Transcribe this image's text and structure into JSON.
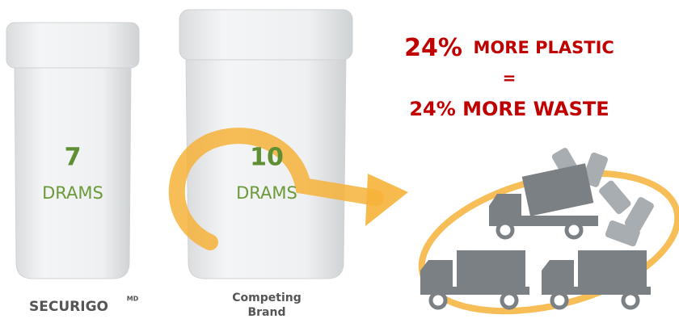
{
  "containers": [
    {
      "amount": 7,
      "unit": "DRAMS",
      "label": "SECURIGO",
      "label_mark": "MD"
    },
    {
      "amount": 10,
      "unit": "DRAMS",
      "label_lines": [
        "Competing",
        "Brand"
      ]
    }
  ],
  "headline": {
    "percent": "24%",
    "line1": "MORE PLASTIC",
    "equals": "=",
    "line3": "24% MORE WASTE"
  }
}
